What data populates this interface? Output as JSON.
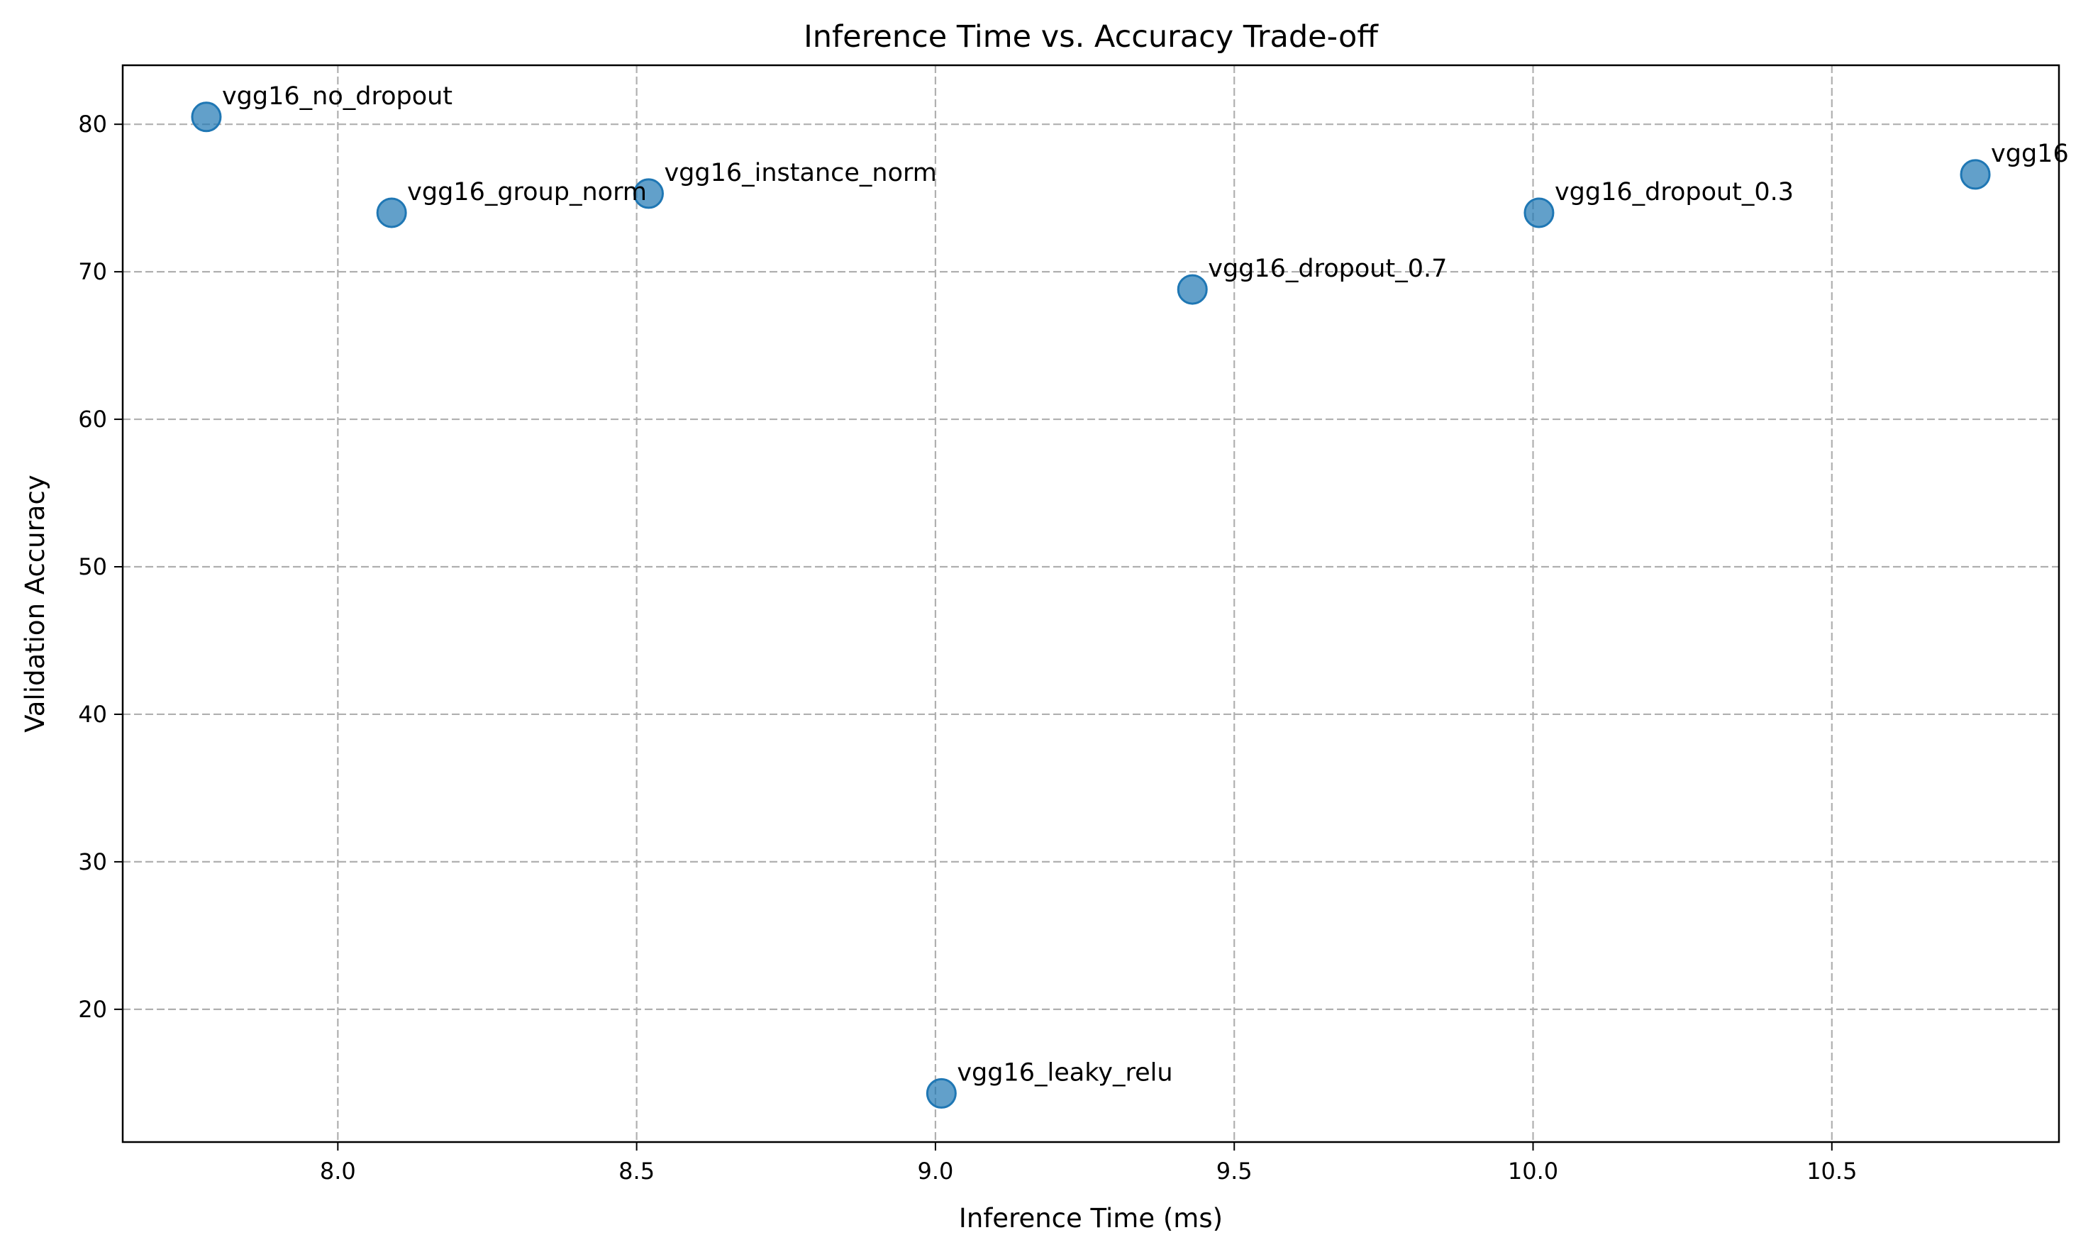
{
  "chart_data": {
    "type": "scatter",
    "title": "Inference Time vs. Accuracy Trade-off",
    "xlabel": "Inference Time (ms)",
    "ylabel": "Validation Accuracy",
    "xlim": [
      7.64,
      10.88
    ],
    "ylim": [
      11,
      84
    ],
    "xticks": [
      8.0,
      8.5,
      9.0,
      9.5,
      10.0,
      10.5
    ],
    "xtick_labels": [
      "8.0",
      "8.5",
      "9.0",
      "9.5",
      "10.0",
      "10.5"
    ],
    "yticks": [
      20,
      30,
      40,
      50,
      60,
      70,
      80
    ],
    "ytick_labels": [
      "20",
      "30",
      "40",
      "50",
      "60",
      "70",
      "80"
    ],
    "grid": true,
    "marker_color": "#1f77b4",
    "marker_alpha": 0.7,
    "points": [
      {
        "label": "vgg16_no_dropout",
        "x": 7.78,
        "y": 80.5
      },
      {
        "label": "vgg16_group_norm",
        "x": 8.09,
        "y": 74.0
      },
      {
        "label": "vgg16_instance_norm",
        "x": 8.52,
        "y": 75.3
      },
      {
        "label": "vgg16_leaky_relu",
        "x": 9.01,
        "y": 14.3
      },
      {
        "label": "vgg16_dropout_0.7",
        "x": 9.43,
        "y": 68.8
      },
      {
        "label": "vgg16_dropout_0.3",
        "x": 10.01,
        "y": 74.0
      },
      {
        "label": "vgg16",
        "x": 10.74,
        "y": 76.6
      }
    ]
  }
}
